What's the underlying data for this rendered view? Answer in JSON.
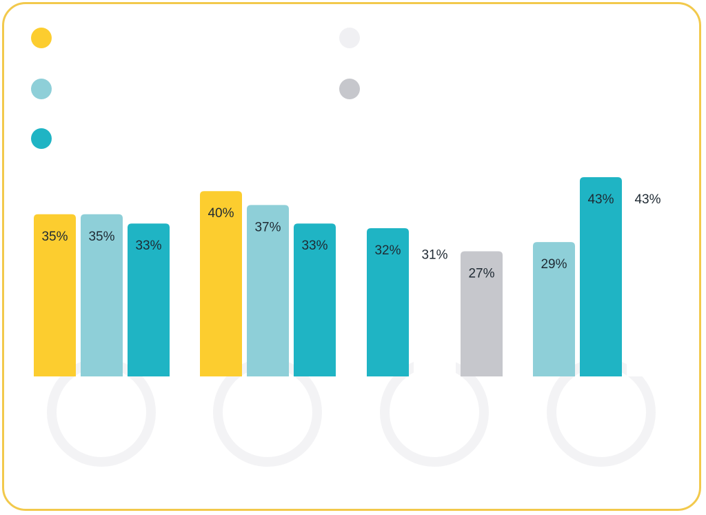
{
  "legend": [
    {
      "text": "",
      "color": "#fccd2f"
    },
    {
      "text": "",
      "color": "#8ecfd8"
    },
    {
      "text": "",
      "color": "#1fb4c4"
    },
    {
      "text": "",
      "color": "#f0f0f3"
    },
    {
      "text": "",
      "color": "#c6c7cc"
    }
  ],
  "chart_data": {
    "type": "bar",
    "ylim": [
      0,
      45
    ],
    "groups": [
      {
        "name": "",
        "bars": [
          {
            "value": 35,
            "label": "35%",
            "color": "#fccd2f"
          },
          {
            "value": 35,
            "label": "35%",
            "color": "#8ecfd8"
          },
          {
            "value": 33,
            "label": "33%",
            "color": "#1fb4c4"
          }
        ]
      },
      {
        "name": "",
        "bars": [
          {
            "value": 40,
            "label": "40%",
            "color": "#fccd2f"
          },
          {
            "value": 37,
            "label": "37%",
            "color": "#8ecfd8"
          },
          {
            "value": 33,
            "label": "33%",
            "color": "#1fb4c4"
          }
        ]
      },
      {
        "name": "",
        "bars": [
          {
            "value": 32,
            "label": "32%",
            "color": "#1fb4c4"
          },
          {
            "value": 31,
            "label": "31%",
            "color": "#ffffff"
          },
          {
            "value": 27,
            "label": "27%",
            "color": "#c6c7cc"
          }
        ]
      },
      {
        "name": "",
        "bars": [
          {
            "value": 29,
            "label": "29%",
            "color": "#8ecfd8"
          },
          {
            "value": 43,
            "label": "43%",
            "color": "#1fb4c4"
          },
          {
            "value": 43,
            "label": "43%",
            "color": "#ffffff"
          }
        ]
      }
    ]
  },
  "footnote": "",
  "frame_color": "#f2c94c"
}
